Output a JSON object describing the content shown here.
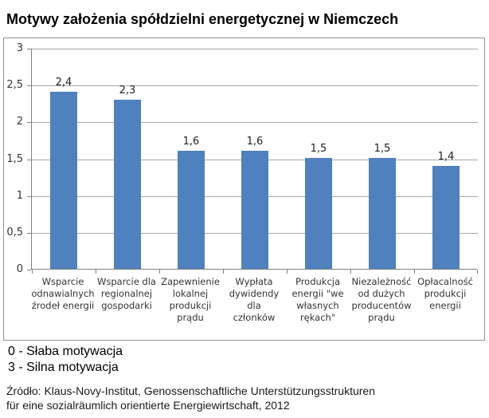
{
  "chart_data": {
    "type": "bar",
    "title": "Motywy założenia spółdzielni energetycznej w Niemczech",
    "categories": [
      "Wsparcie\nodnawialnych\nźrodeł energii",
      "Wsparcie dla\nregionalnej\ngospodarki",
      "Zapewnienie\nlokalnej\nprodukcji\nprądu",
      "Wypłata\ndywidendy dla\nczłonków",
      "Produkcja\nenergii \"we\nwłasnych\nrękach\"",
      "Niezależność\nod dużych\nproducentów\nprądu",
      "Opłacalność\nprodukcji\nenergii"
    ],
    "values": [
      2.4,
      2.3,
      1.6,
      1.6,
      1.5,
      1.5,
      1.4
    ],
    "value_labels": [
      "2,4",
      "2,3",
      "1,6",
      "1,6",
      "1,5",
      "1,5",
      "1,4"
    ],
    "xlabel": "",
    "ylabel": "",
    "ylim": [
      0,
      3
    ],
    "yticks": [
      {
        "value": 0,
        "label": "0"
      },
      {
        "value": 0.5,
        "label": "0,5"
      },
      {
        "value": 1,
        "label": "1"
      },
      {
        "value": 1.5,
        "label": "1,5"
      },
      {
        "value": 2,
        "label": "2"
      },
      {
        "value": 2.5,
        "label": "2,5"
      },
      {
        "value": 3,
        "label": "3"
      }
    ],
    "grid": true,
    "legend_position": "none",
    "bar_color": "#4e81bd",
    "gridline_color": "#a6a6a6",
    "axis_color": "#808080"
  },
  "notes": {
    "line1": "0 - Słaba motywacja",
    "line2": "3 - Silna motywacja"
  },
  "source": "Źródło: Klaus-Novy-Institut, Genossenschaftliche Unterstützungsstrukturen\nfür eine sozialräumlich orientierte Energiewirtschaft, 2012"
}
